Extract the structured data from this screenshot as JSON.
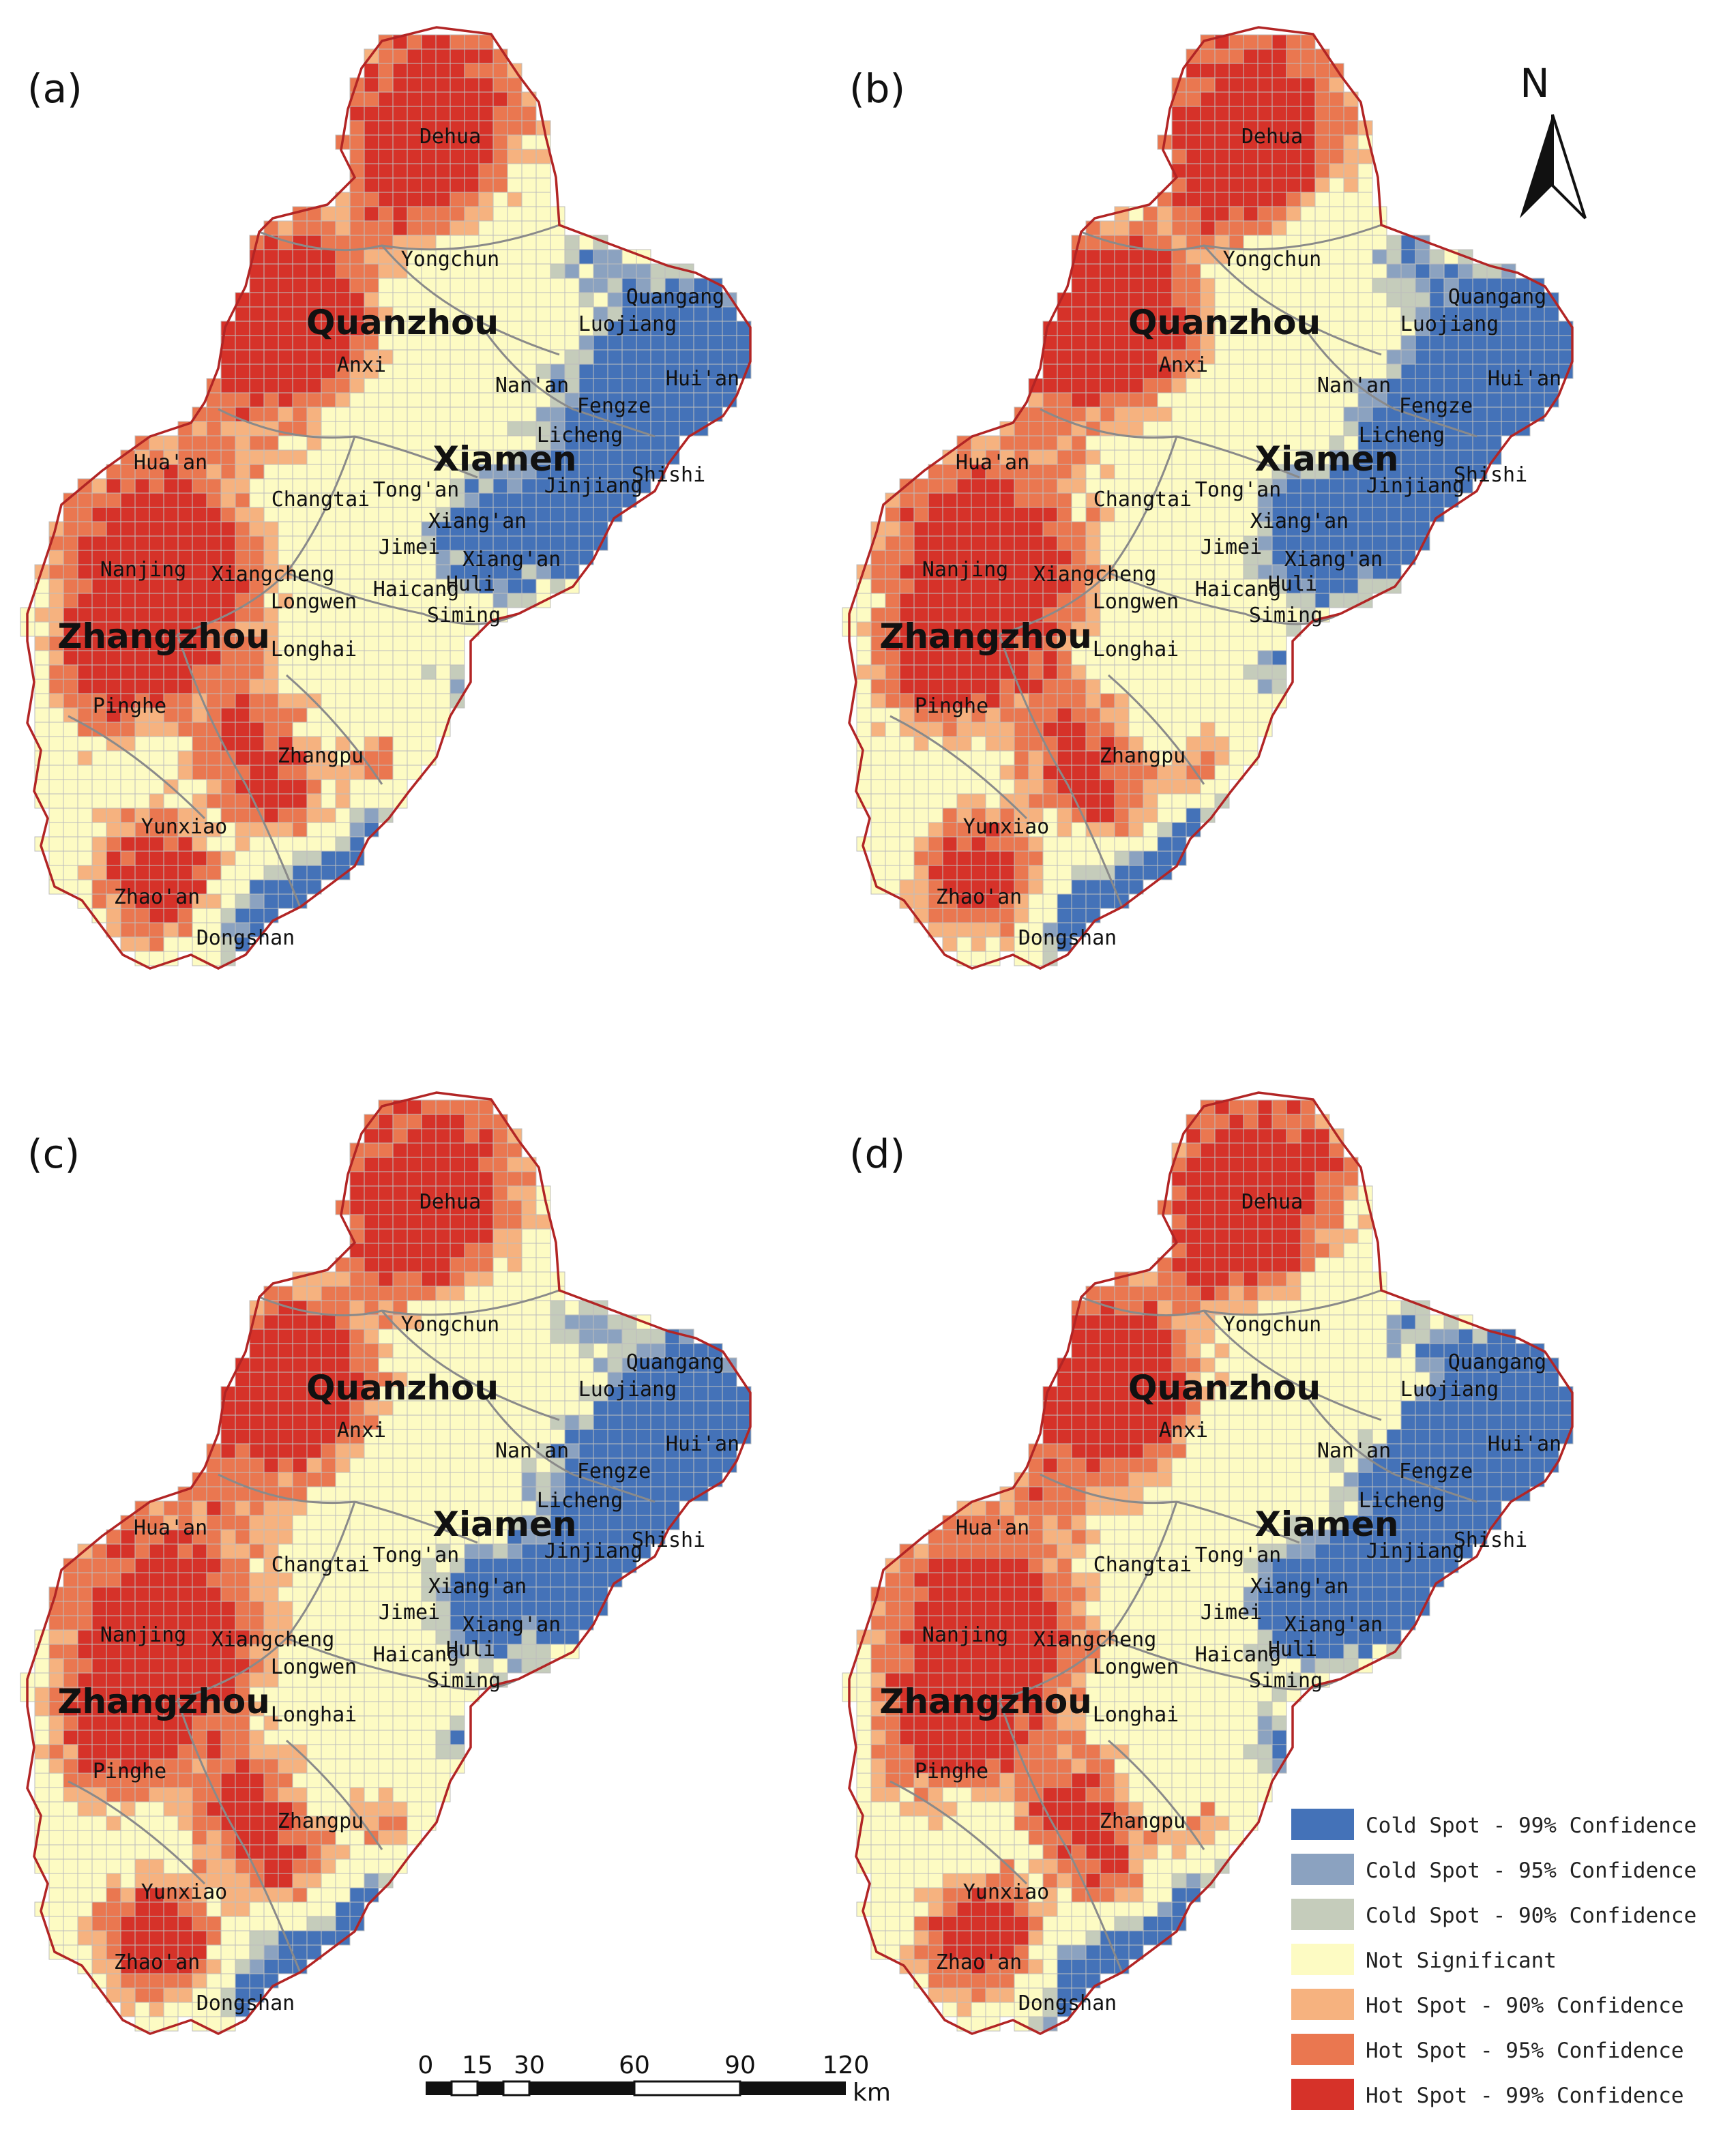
{
  "panels": [
    {
      "label": "(a)",
      "variant": 0
    },
    {
      "label": "(b)",
      "variant": 1
    },
    {
      "label": "(c)",
      "variant": 2
    },
    {
      "label": "(d)",
      "variant": 3
    }
  ],
  "places": [
    "Dehua",
    "Yongchun",
    "Quangang",
    "Luojiang",
    "Anxi",
    "Nan'an",
    "Hui'an",
    "Fengze",
    "Licheng",
    "Shishi",
    "Jinjiang",
    "Hua'an",
    "Changtai",
    "Tong'an",
    "Xiang'an",
    "Jimei",
    "Xiang'an",
    "Xiangcheng",
    "Nanjing",
    "Haicang",
    "Huli",
    "Longwen",
    "Siming",
    "Longhai",
    "Pinghe",
    "Zhangpu",
    "Yunxiao",
    "Zhao'an",
    "Dongshan"
  ],
  "cities": [
    "Quanzhou",
    "Xiamen",
    "Zhangzhou"
  ],
  "north_arrow": {
    "label": "N"
  },
  "scale_bar": {
    "ticks": [
      "0",
      "15",
      "30",
      "60",
      "90",
      "120"
    ],
    "unit": "km"
  },
  "legend": [
    {
      "label": "Cold Spot - 99% Confidence",
      "color": "#4472b8"
    },
    {
      "label": "Cold Spot - 95% Confidence",
      "color": "#8ba2c0"
    },
    {
      "label": "Cold Spot - 90% Confidence",
      "color": "#c5ccbb"
    },
    {
      "label": "Not Significant",
      "color": "#fdfbc3"
    },
    {
      "label": "Hot Spot - 90% Confidence",
      "color": "#f6b27f"
    },
    {
      "label": "Hot Spot - 95% Confidence",
      "color": "#ea7750"
    },
    {
      "label": "Hot Spot - 99% Confidence",
      "color": "#d63229"
    }
  ],
  "colors": {
    "boundary": "#b22525",
    "district": "#8a8a8a",
    "grid": "#bdbdbd"
  }
}
